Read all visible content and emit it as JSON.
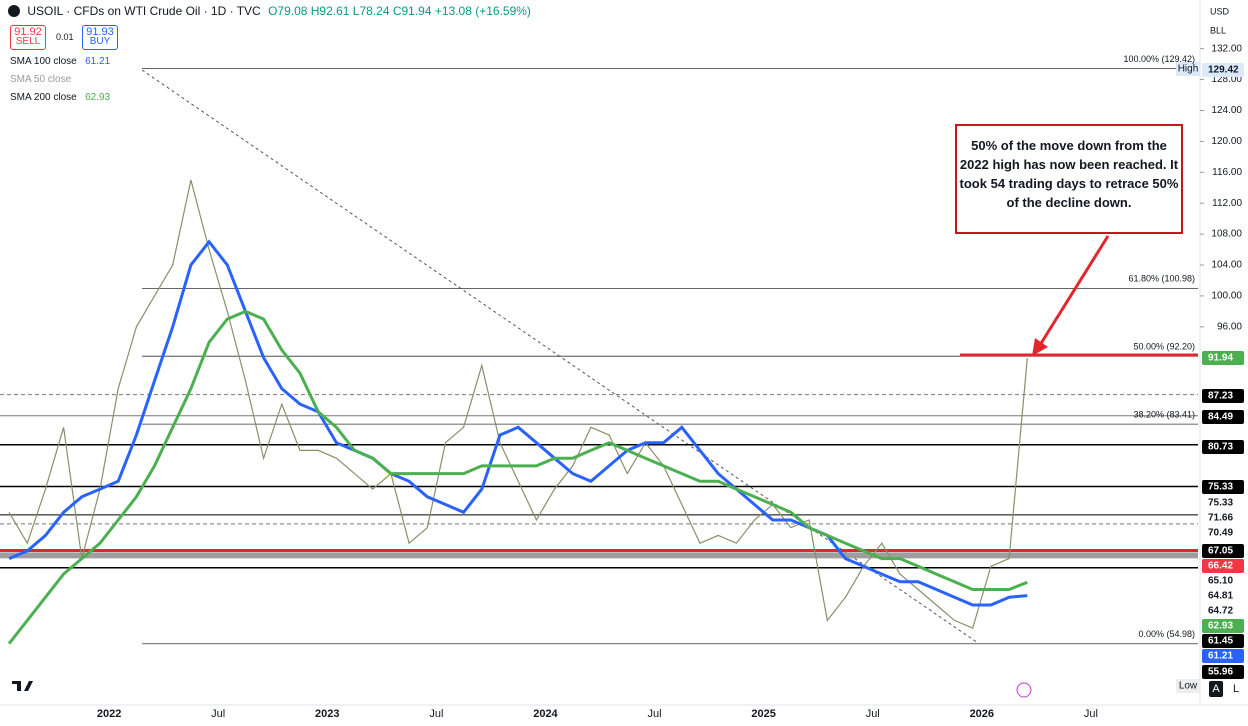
{
  "header": {
    "symbol": "USOIL · CFDs on WTI Crude Oil · 1D · TVC",
    "ohlc": "O79.08 H92.61 L78.24 C91.94 +13.08 (+16.59%)",
    "sell_price": "91.92",
    "sell": "SELL",
    "spread": "0.01",
    "buy_price": "91.93",
    "buy": "BUY",
    "currency": "USD",
    "unit": "BLL"
  },
  "indicators": [
    {
      "name": "SMA 100 close",
      "value": "61.21",
      "color": "#2962ff"
    },
    {
      "name": "SMA 50 close",
      "value": "",
      "color": "#999"
    },
    {
      "name": "SMA 200 close",
      "value": "62.93",
      "color": "#4caf50"
    }
  ],
  "chart_data": {
    "type": "line",
    "x": [
      "2021-07",
      "2021-08",
      "2021-09",
      "2021-10",
      "2021-11",
      "2021-12",
      "2022-01",
      "2022-02",
      "2022-03",
      "2022-04",
      "2022-05",
      "2022-06",
      "2022-07",
      "2022-08",
      "2022-09",
      "2022-10",
      "2022-11",
      "2022-12",
      "2023-01",
      "2023-02",
      "2023-03",
      "2023-04",
      "2023-05",
      "2023-06",
      "2023-07",
      "2023-08",
      "2023-09",
      "2023-10",
      "2023-11",
      "2023-12",
      "2024-01",
      "2024-02",
      "2024-03",
      "2024-04",
      "2024-05",
      "2024-06",
      "2024-07",
      "2024-08",
      "2024-09",
      "2024-10",
      "2024-11",
      "2024-12",
      "2025-01",
      "2025-02",
      "2025-03",
      "2025-04",
      "2025-05",
      "2025-06",
      "2025-07",
      "2025-08",
      "2025-09",
      "2025-10",
      "2025-11",
      "2025-12",
      "2026-01",
      "2026-02",
      "2026-03"
    ],
    "series": [
      {
        "name": "USOIL",
        "color": "#8a8f6a",
        "values": [
          72,
          68,
          75,
          83,
          66,
          75,
          88,
          96,
          100,
          104,
          115,
          106,
          98,
          89,
          79,
          86,
          80,
          80,
          79,
          77,
          75,
          77,
          68,
          70,
          81,
          83,
          91,
          81,
          76,
          71,
          75,
          78,
          83,
          82,
          77,
          81,
          78,
          73,
          68,
          69,
          68,
          71,
          73,
          70,
          71,
          58,
          61,
          65,
          68,
          64,
          62,
          60,
          58,
          57,
          65,
          66,
          91.94
        ]
      },
      {
        "name": "SMA 100",
        "color": "#2962ff",
        "values": [
          66,
          67,
          69,
          72,
          74,
          75,
          76,
          82,
          89,
          96,
          104,
          107,
          104,
          98,
          92,
          88,
          86,
          85,
          81,
          80,
          79,
          77,
          76,
          74,
          73,
          72,
          75,
          82,
          83,
          81,
          79,
          77,
          76,
          78,
          80,
          81,
          81,
          83,
          80,
          77,
          75,
          73,
          71,
          71,
          70,
          69,
          66,
          65,
          64,
          63,
          63,
          62,
          61,
          60,
          60,
          61,
          61.21
        ]
      },
      {
        "name": "SMA 200",
        "color": "#4caf50",
        "values": [
          55,
          58,
          61,
          64,
          66,
          68,
          71,
          74,
          78,
          83,
          88,
          94,
          97,
          98,
          97,
          93,
          90,
          85,
          83,
          80,
          79,
          77,
          77,
          77,
          77,
          77,
          78,
          78,
          78,
          78,
          79,
          79,
          80,
          81,
          80,
          79,
          78,
          77,
          76,
          76,
          75,
          74,
          73,
          72,
          70,
          69,
          68,
          67,
          66,
          66,
          65,
          64,
          63,
          62,
          62,
          62,
          62.93
        ]
      }
    ],
    "xlim": [
      "2021-07",
      "2026-12"
    ],
    "ylim": [
      47.7,
      138.3
    ],
    "yticks": [
      {
        "value": 96,
        "label": "96.00"
      },
      {
        "value": 100,
        "label": "100.00"
      },
      {
        "value": 104,
        "label": "104.00"
      },
      {
        "value": 108,
        "label": "108.00"
      },
      {
        "value": 112,
        "label": "112.00"
      },
      {
        "value": 116,
        "label": "116.00"
      },
      {
        "value": 120,
        "label": "120.00"
      },
      {
        "value": 124,
        "label": "124.00"
      },
      {
        "value": 128,
        "label": "128.00"
      },
      {
        "value": 132,
        "label": "132.00"
      }
    ],
    "time_labels": [
      {
        "label": "2022",
        "at": "2022-01"
      },
      {
        "label": "Jul",
        "at": "2022-07"
      },
      {
        "label": "2023",
        "at": "2023-01"
      },
      {
        "label": "Jul",
        "at": "2023-07"
      },
      {
        "label": "2024",
        "at": "2024-01"
      },
      {
        "label": "Jul",
        "at": "2024-07"
      },
      {
        "label": "2025",
        "at": "2025-01"
      },
      {
        "label": "Jul",
        "at": "2025-07"
      },
      {
        "label": "2026",
        "at": "2026-01"
      },
      {
        "label": "Jul",
        "at": "2026-07"
      }
    ],
    "levels": [
      {
        "value": 87.23,
        "color": "#777",
        "dash": true,
        "width": 1
      },
      {
        "value": 84.49,
        "color": "#777",
        "dash": false,
        "width": 1
      },
      {
        "value": 80.73,
        "color": "#000",
        "dash": false,
        "width": 1.5
      },
      {
        "value": 75.33,
        "color": "#000",
        "dash": false,
        "width": 1.5
      },
      {
        "value": 71.66,
        "color": "#000",
        "dash": false,
        "width": 1
      },
      {
        "value": 70.49,
        "color": "#777",
        "dash": true,
        "width": 1
      },
      {
        "value": 67.05,
        "color": "#e3262e",
        "dash": false,
        "width": 3
      },
      {
        "value": 66.42,
        "color": "#9e9e9e",
        "dash": false,
        "width": 6
      },
      {
        "value": 64.81,
        "color": "#000",
        "dash": false,
        "width": 1.5
      }
    ],
    "fib": [
      {
        "value": 129.42,
        "label": "100.00% (129.42)"
      },
      {
        "value": 100.98,
        "label": "61.80% (100.98)"
      },
      {
        "value": 92.2,
        "label": "50.00% (92.20)"
      },
      {
        "value": 83.41,
        "label": "38.20% (83.41)"
      },
      {
        "value": 54.98,
        "label": "0.00% (54.98)"
      }
    ],
    "annotation": "50% of the move down from the 2022 high has now been reached. It took 54 trading days to retrace 50% of the decline down.",
    "high_label": "High",
    "low_label": "Low",
    "price_tags": [
      {
        "label": "129.42",
        "bg": "#dbe9f8",
        "fg": "#131722"
      },
      {
        "label": "91.94",
        "bg": "#4caf50",
        "fg": "#fff"
      },
      {
        "label": "87.23",
        "bg": "#000",
        "fg": "#fff"
      },
      {
        "label": "84.49",
        "bg": "#000",
        "fg": "#fff"
      },
      {
        "label": "80.73",
        "bg": "#000",
        "fg": "#fff"
      },
      {
        "label": "75.33",
        "bg": "#000",
        "fg": "#fff"
      },
      {
        "label": "75.33",
        "bg": "#fff",
        "fg": "#131722"
      },
      {
        "label": "71.66",
        "bg": "#fff",
        "fg": "#131722"
      },
      {
        "label": "70.49",
        "bg": "#fff",
        "fg": "#131722"
      },
      {
        "label": "67.05",
        "bg": "#000",
        "fg": "#fff"
      },
      {
        "label": "66.42",
        "bg": "#f23645",
        "fg": "#fff"
      },
      {
        "label": "65.10",
        "bg": "#fff",
        "fg": "#131722"
      },
      {
        "label": "64.81",
        "bg": "#fff",
        "fg": "#131722"
      },
      {
        "label": "64.72",
        "bg": "#fff",
        "fg": "#131722"
      },
      {
        "label": "62.93",
        "bg": "#4caf50",
        "fg": "#fff"
      },
      {
        "label": "61.45",
        "bg": "#000",
        "fg": "#fff"
      },
      {
        "label": "61.21",
        "bg": "#2962ff",
        "fg": "#fff"
      },
      {
        "label": "55.96",
        "bg": "#000",
        "fg": "#fff"
      }
    ],
    "scale_buttons": [
      "A",
      "L"
    ]
  }
}
